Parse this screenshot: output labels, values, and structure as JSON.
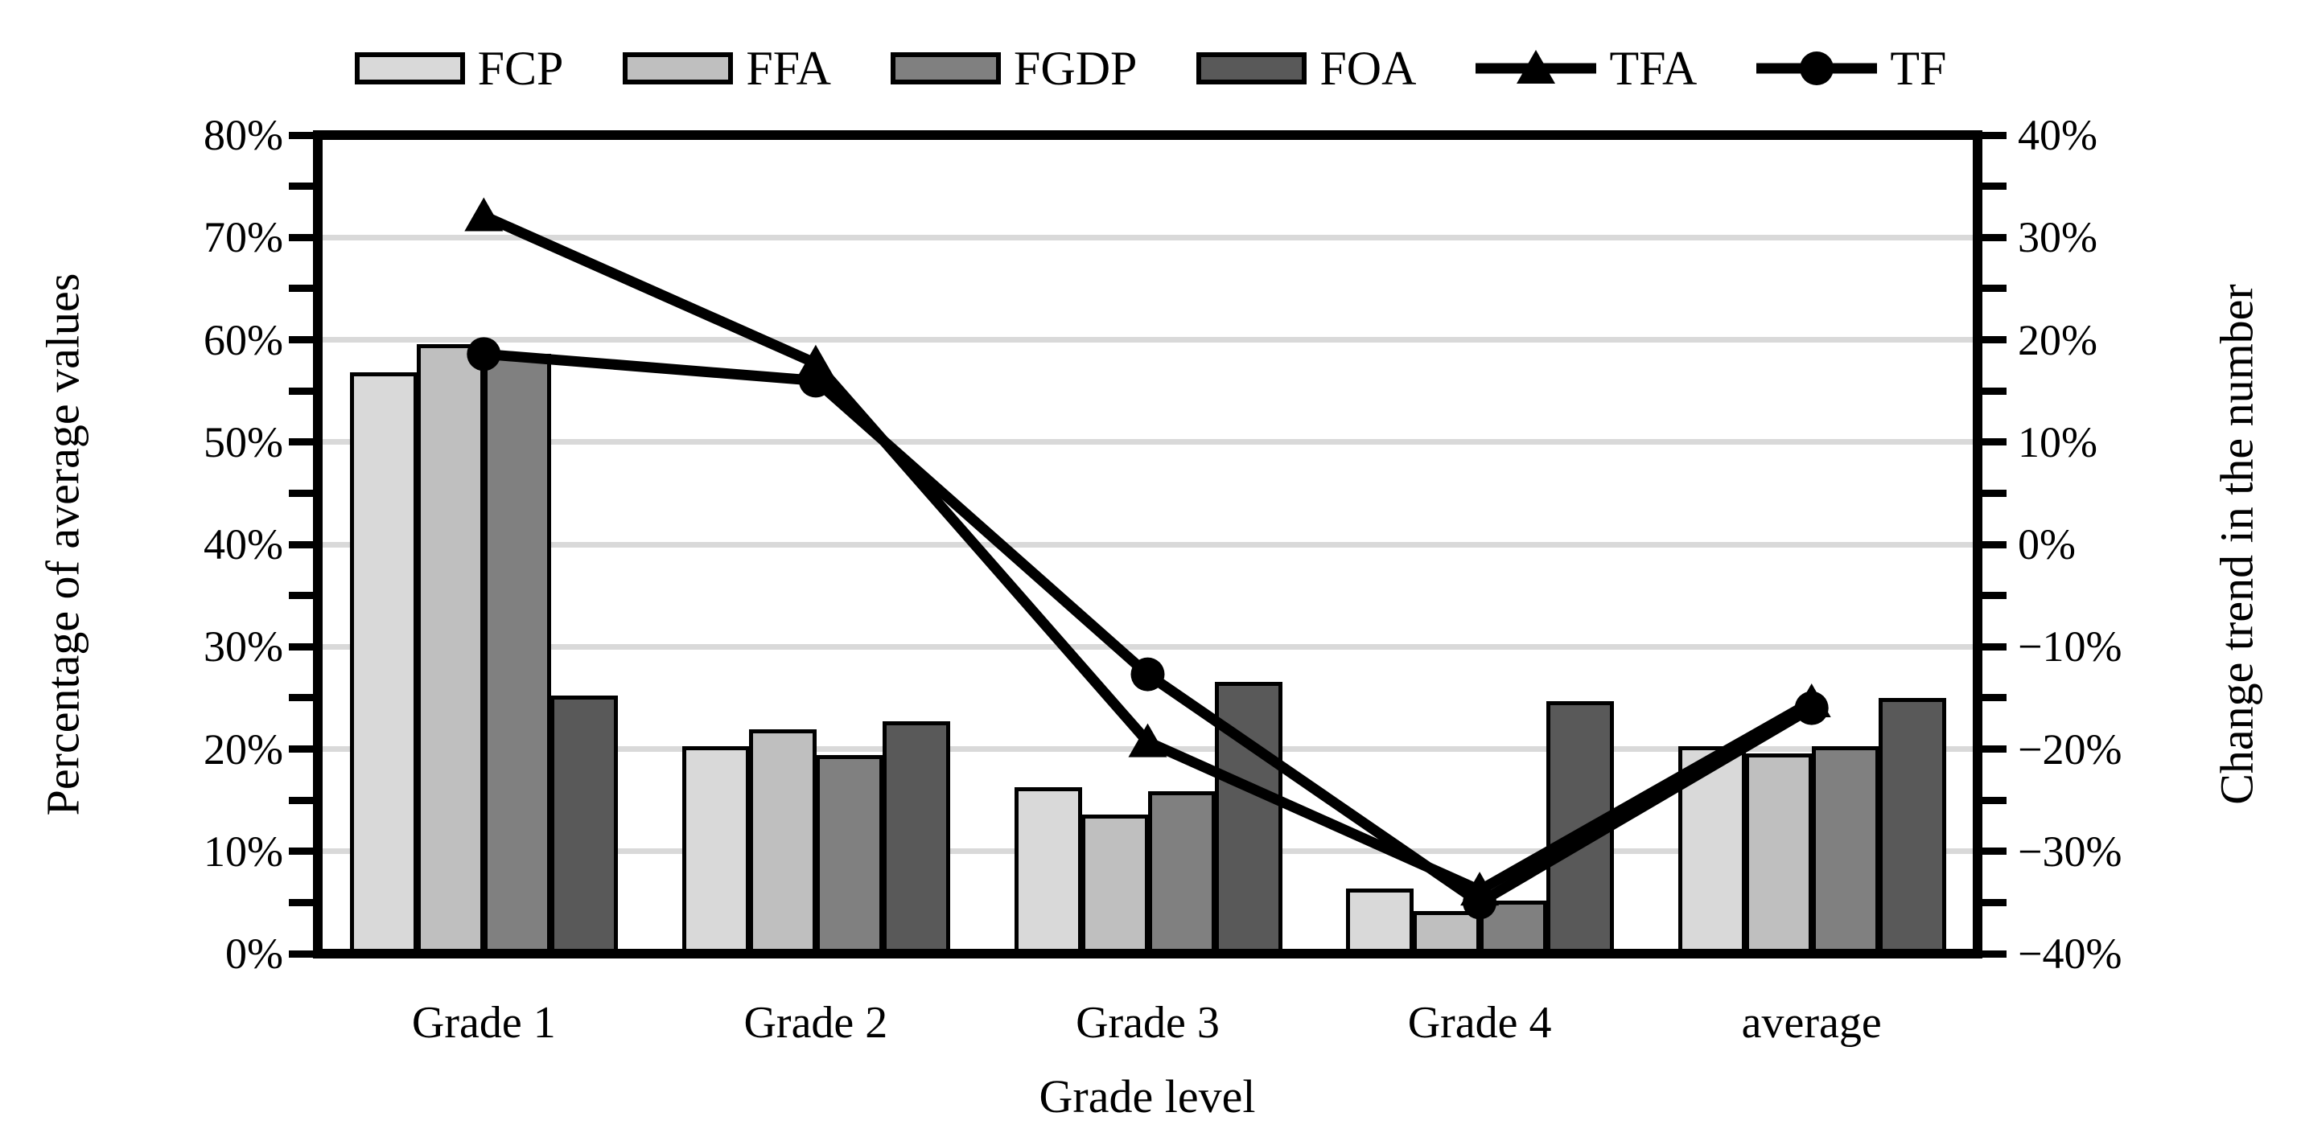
{
  "chart_data": {
    "type": "combo-bar-line",
    "categories": [
      "Grade 1",
      "Grade 2",
      "Grade 3",
      "Grade 4",
      "average"
    ],
    "xlabel": "Grade level",
    "left_axis": {
      "label": "Percentage of average values",
      "min": 0,
      "max": 80,
      "step": 10,
      "minor_tick_step": 5,
      "tick_labels_top_to_bottom": [
        "80%",
        "70%",
        "60%",
        "50%",
        "40%",
        "30%",
        "20%",
        "10%",
        "0%"
      ]
    },
    "right_axis": {
      "label": "Change trend in the number",
      "min": -40,
      "max": 40,
      "step": 10,
      "minor_tick_step": 5,
      "tick_labels_top_to_bottom": [
        "40%",
        "30%",
        "20%",
        "10%",
        "0%",
        "−10%",
        "−20%",
        "−30%",
        "−40%"
      ]
    },
    "bar_series": [
      {
        "name": "FCP",
        "color": "#d9d9d9",
        "axis": "left",
        "values": [
          56.8,
          20.3,
          16.3,
          6.4,
          20.3
        ]
      },
      {
        "name": "FFA",
        "color": "#bfbfbf",
        "axis": "left",
        "values": [
          59.6,
          21.9,
          13.6,
          4.2,
          19.6
        ]
      },
      {
        "name": "FGDP",
        "color": "#808080",
        "axis": "left",
        "values": [
          58.6,
          19.4,
          15.9,
          5.2,
          20.3
        ]
      },
      {
        "name": "FOA",
        "color": "#595959",
        "axis": "left",
        "values": [
          25.2,
          22.7,
          26.6,
          24.7,
          25.0
        ]
      }
    ],
    "line_series": [
      {
        "name": "TFA",
        "marker": "triangle",
        "color": "#000000",
        "axis": "right",
        "values": [
          32.1,
          17.7,
          -19.3,
          -33.8,
          -15.4
        ]
      },
      {
        "name": "TF",
        "marker": "circle",
        "color": "#000000",
        "axis": "right",
        "values": [
          18.6,
          16.0,
          -12.7,
          -35.0,
          -16.0
        ]
      }
    ],
    "grid": {
      "color": "#d9d9d9",
      "interval": 10,
      "horizontal_only": true
    },
    "legend_position": "top",
    "frame_color": "#000000",
    "background": "#ffffff"
  }
}
